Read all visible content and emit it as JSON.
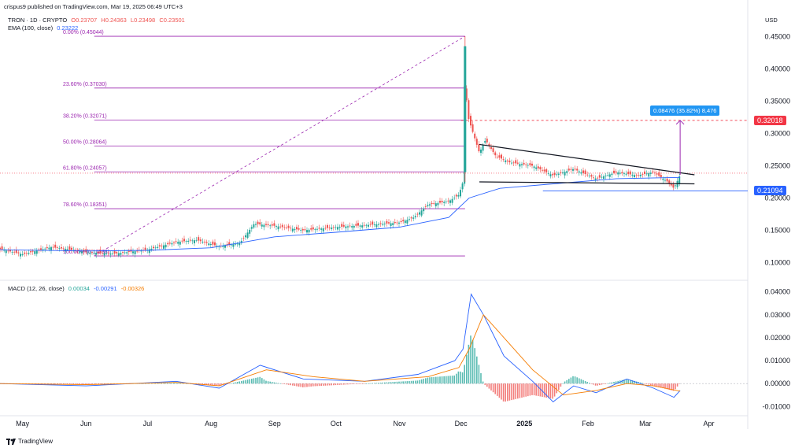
{
  "header": {
    "publisher_line": "crispus9 published on TradingView.com, Mar 19, 2025 06:49 UTC+3",
    "symbol": "TRON · 1D · CRYPTO",
    "open": "O0.23707",
    "high": "H0.24363",
    "low": "L0.23498",
    "close": "C0.23501",
    "ema_label": "EMA (100, close)",
    "ema_value": "0.23222",
    "currency": "USD",
    "macd_label": "MACD (12, 26, close)",
    "macd_hist": "0.00034",
    "macd_line": "-0.00291",
    "macd_signal": "-0.00326"
  },
  "brand": {
    "name": "TradingView",
    "icon": "tradingview-logo-icon"
  },
  "price_tags": {
    "target": "0.32018",
    "current": "0.21094",
    "target_color": "#f23645",
    "current_color": "#2962ff"
  },
  "measure_label": "0.08476 (35.82%) 8,476",
  "colors": {
    "up": "#26a69a",
    "down": "#ef5350",
    "ema": "#2962ff",
    "fib": "#9c27b0",
    "macd_signal": "#f57c00"
  },
  "chart_data": [
    {
      "type": "candlestick",
      "title": "TRON · 1D · CRYPTO",
      "ylabel": "USD",
      "ylim": [
        0.08,
        0.47
      ],
      "x_ticks": [
        "May",
        "Jun",
        "Jul",
        "Aug",
        "Sep",
        "Oct",
        "Nov",
        "Dec",
        "2025",
        "Feb",
        "Mar",
        "Apr"
      ],
      "y_ticks": [
        "0.45000",
        "0.40000",
        "0.35000",
        "0.30000",
        "0.25000",
        "0.20000",
        "0.15000",
        "0.10000"
      ],
      "fib_levels": [
        {
          "label": "0.00% (0.45044)",
          "value": 0.45044
        },
        {
          "label": "23.60% (0.37030)",
          "value": 0.3703
        },
        {
          "label": "38.20% (0.32071)",
          "value": 0.32071
        },
        {
          "label": "50.00% (0.28064)",
          "value": 0.28064
        },
        {
          "label": "61.80% (0.24057)",
          "value": 0.24057
        },
        {
          "label": "78.60% (0.18351)",
          "value": 0.18351
        },
        {
          "label": "100.00% (0.11038)",
          "value": 0.11038
        }
      ],
      "close_path": [
        [
          "2024-04-20",
          0.121
        ],
        [
          "2024-05-01",
          0.113
        ],
        [
          "2024-05-15",
          0.124
        ],
        [
          "2024-05-25",
          0.12
        ],
        [
          "2024-06-01",
          0.116
        ],
        [
          "2024-06-15",
          0.114
        ],
        [
          "2024-07-01",
          0.12
        ],
        [
          "2024-07-15",
          0.132
        ],
        [
          "2024-07-25",
          0.135
        ],
        [
          "2024-08-05",
          0.125
        ],
        [
          "2024-08-15",
          0.13
        ],
        [
          "2024-08-22",
          0.16
        ],
        [
          "2024-09-01",
          0.157
        ],
        [
          "2024-09-15",
          0.15
        ],
        [
          "2024-10-01",
          0.155
        ],
        [
          "2024-10-15",
          0.158
        ],
        [
          "2024-11-01",
          0.162
        ],
        [
          "2024-11-08",
          0.17
        ],
        [
          "2024-11-15",
          0.19
        ],
        [
          "2024-11-25",
          0.195
        ],
        [
          "2024-11-30",
          0.205
        ],
        [
          "2024-12-02",
          0.225
        ],
        [
          "2024-12-03",
          0.42
        ],
        [
          "2024-12-04",
          0.33
        ],
        [
          "2024-12-06",
          0.31
        ],
        [
          "2024-12-10",
          0.27
        ],
        [
          "2024-12-13",
          0.29
        ],
        [
          "2024-12-18",
          0.265
        ],
        [
          "2024-12-25",
          0.255
        ],
        [
          "2025-01-05",
          0.25
        ],
        [
          "2025-01-15",
          0.235
        ],
        [
          "2025-01-25",
          0.245
        ],
        [
          "2025-02-05",
          0.23
        ],
        [
          "2025-02-15",
          0.24
        ],
        [
          "2025-02-25",
          0.235
        ],
        [
          "2025-03-05",
          0.24
        ],
        [
          "2025-03-12",
          0.225
        ],
        [
          "2025-03-15",
          0.215
        ],
        [
          "2025-03-18",
          0.236
        ]
      ],
      "ema_100": [
        [
          "2024-04-20",
          0.12
        ],
        [
          "2024-06-01",
          0.118
        ],
        [
          "2024-07-01",
          0.119
        ],
        [
          "2024-08-01",
          0.123
        ],
        [
          "2024-09-01",
          0.14
        ],
        [
          "2024-10-01",
          0.147
        ],
        [
          "2024-11-01",
          0.155
        ],
        [
          "2024-11-25",
          0.17
        ],
        [
          "2024-12-05",
          0.2
        ],
        [
          "2024-12-20",
          0.215
        ],
        [
          "2025-01-15",
          0.222
        ],
        [
          "2025-02-15",
          0.23
        ],
        [
          "2025-03-18",
          0.232
        ]
      ],
      "annotations": {
        "measure": "0.08476 (35.82%) 8,476",
        "target_price": 0.32018,
        "current_price": 0.21094
      }
    },
    {
      "type": "macd",
      "title": "MACD (12, 26, close)",
      "ylim": [
        -0.013,
        0.043
      ],
      "y_ticks": [
        "0.04000",
        "0.03000",
        "0.02000",
        "0.01000",
        "0.00000",
        "-0.01000"
      ],
      "macd_line": [
        [
          "2024-04-20",
          0.0
        ],
        [
          "2024-06-01",
          -0.001
        ],
        [
          "2024-07-15",
          0.001
        ],
        [
          "2024-08-05",
          -0.002
        ],
        [
          "2024-08-25",
          0.008
        ],
        [
          "2024-09-15",
          0.002
        ],
        [
          "2024-10-15",
          0.001
        ],
        [
          "2024-11-10",
          0.004
        ],
        [
          "2024-11-28",
          0.01
        ],
        [
          "2024-12-02",
          0.015
        ],
        [
          "2024-12-06",
          0.039
        ],
        [
          "2024-12-12",
          0.03
        ],
        [
          "2024-12-22",
          0.012
        ],
        [
          "2025-01-05",
          0.001
        ],
        [
          "2025-01-15",
          -0.008
        ],
        [
          "2025-01-25",
          -0.001
        ],
        [
          "2025-02-05",
          -0.004
        ],
        [
          "2025-02-20",
          0.002
        ],
        [
          "2025-03-05",
          -0.002
        ],
        [
          "2025-03-15",
          -0.006
        ],
        [
          "2025-03-18",
          -0.003
        ]
      ],
      "signal_line": [
        [
          "2024-04-20",
          0.0
        ],
        [
          "2024-06-01",
          -0.0005
        ],
        [
          "2024-07-15",
          0.0005
        ],
        [
          "2024-08-05",
          -0.001
        ],
        [
          "2024-08-28",
          0.006
        ],
        [
          "2024-09-20",
          0.003
        ],
        [
          "2024-10-15",
          0.001
        ],
        [
          "2024-11-15",
          0.003
        ],
        [
          "2024-11-30",
          0.007
        ],
        [
          "2024-12-05",
          0.015
        ],
        [
          "2024-12-12",
          0.03
        ],
        [
          "2024-12-22",
          0.02
        ],
        [
          "2025-01-05",
          0.006
        ],
        [
          "2025-01-20",
          -0.005
        ],
        [
          "2025-02-05",
          -0.003
        ],
        [
          "2025-02-20",
          0.0
        ],
        [
          "2025-03-05",
          -0.001
        ],
        [
          "2025-03-18",
          -0.0033
        ]
      ],
      "histogram": [
        [
          "2024-08-25",
          0.002
        ],
        [
          "2024-11-28",
          0.004
        ],
        [
          "2024-12-05",
          0.014
        ],
        [
          "2024-12-12",
          -0.005
        ],
        [
          "2024-12-20",
          -0.01
        ],
        [
          "2025-01-15",
          -0.002
        ],
        [
          "2025-02-10",
          0.001
        ],
        [
          "2025-03-15",
          -0.002
        ],
        [
          "2025-03-18",
          0.0003
        ]
      ]
    }
  ]
}
